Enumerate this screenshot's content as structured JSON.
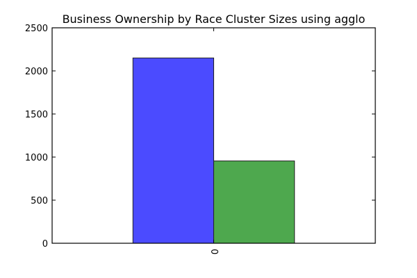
{
  "chart_data": {
    "type": "bar",
    "title": "Business Ownership by Race Cluster Sizes using agglo",
    "xlabel": "",
    "ylabel": "",
    "categories": [
      "0"
    ],
    "series": [
      {
        "values": [
          2150
        ],
        "color": "#4b4bff"
      },
      {
        "values": [
          955
        ],
        "color": "#4ea84e"
      }
    ],
    "ylim": [
      0,
      2500
    ],
    "yticks": [
      0,
      500,
      1000,
      1500,
      2000,
      2500
    ],
    "yticks_labels": [
      "0",
      "500",
      "1000",
      "1500",
      "2000",
      "2500"
    ],
    "grid": false,
    "legend": "none"
  }
}
